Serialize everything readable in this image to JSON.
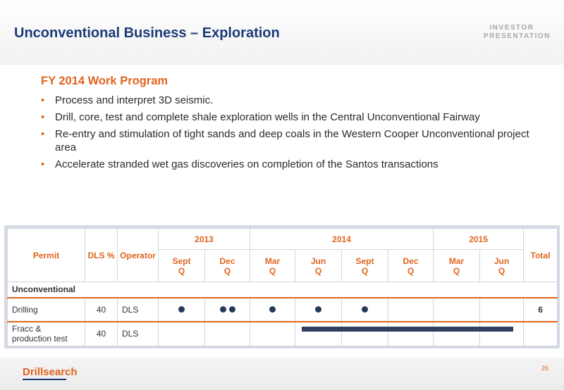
{
  "header": {
    "title": "Unconventional Business – Exploration",
    "badge_line1": "INVESTOR",
    "badge_line2": "PRESENTATION"
  },
  "content": {
    "subtitle": "FY 2014 Work Program",
    "bullets": [
      "Process and interpret 3D seismic.",
      "Drill, core, test and complete shale exploration wells in the Central Unconventional Fairway",
      "Re-entry and stimulation of tight sands and deep coals in the Western Cooper Unconventional project area",
      "Accelerate stranded wet gas discoveries on completion of the Santos transactions"
    ]
  },
  "table": {
    "headers": {
      "permit": "Permit",
      "dls": "DLS %",
      "operator": "Operator",
      "total": "Total"
    },
    "years": [
      "2013",
      "2014",
      "2015"
    ],
    "quarters": [
      [
        "Sept",
        "Q"
      ],
      [
        "Dec",
        "Q"
      ],
      [
        "Mar",
        "Q"
      ],
      [
        "Jun",
        "Q"
      ],
      [
        "Sept",
        "Q"
      ],
      [
        "Dec",
        "Q"
      ],
      [
        "Mar",
        "Q"
      ],
      [
        "Jun",
        "Q"
      ]
    ],
    "section": "Unconventional",
    "rows": [
      {
        "permit": "Drilling",
        "dls": "40",
        "operator": "DLS",
        "total": "6"
      },
      {
        "permit_line1": "Fracc &",
        "permit_line2": "production test",
        "dls": "40",
        "operator": "DLS",
        "total": ""
      }
    ]
  },
  "footer": {
    "logo": "Drillsearch",
    "page": "26"
  },
  "colors": {
    "accent": "#e0641e",
    "brand": "#1c3a78",
    "marker": "#243a58"
  }
}
